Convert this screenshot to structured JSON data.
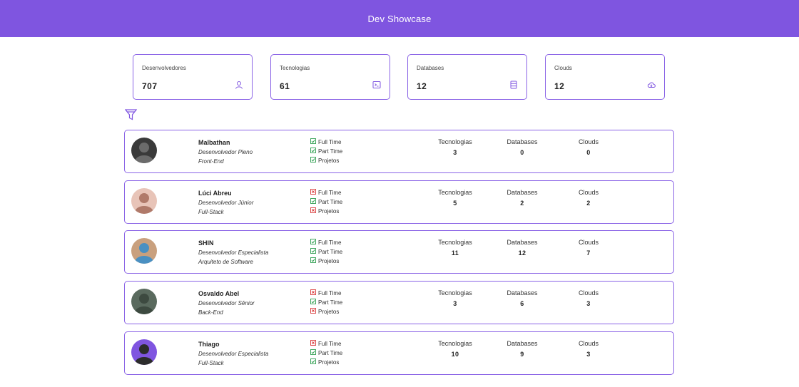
{
  "header": {
    "title": "Dev Showcase"
  },
  "stats": [
    {
      "label": "Desenvolvedores",
      "value": "707",
      "icon": "user-icon"
    },
    {
      "label": "Tecnologias",
      "value": "61",
      "icon": "terminal-icon"
    },
    {
      "label": "Databases",
      "value": "12",
      "icon": "database-icon"
    },
    {
      "label": "Clouds",
      "value": "12",
      "icon": "cloud-icon"
    }
  ],
  "filter": {
    "icon": "filter-icon"
  },
  "availability_labels": {
    "full_time": "Full Time",
    "part_time": "Part Time",
    "projects": "Projetos"
  },
  "metric_labels": {
    "technologies": "Tecnologias",
    "databases": "Databases",
    "clouds": "Clouds"
  },
  "colors": {
    "accent": "#7f55e0",
    "check": "#2e9e4f",
    "cross": "#d93a3a"
  },
  "developers": [
    {
      "name": "Malbathan",
      "role": "Desenvolvedor Pleno",
      "stack": "Front-End",
      "full_time": true,
      "part_time": true,
      "projects": true,
      "technologies": "3",
      "databases": "0",
      "clouds": "0"
    },
    {
      "name": "Lúci Abreu",
      "role": "Desenvolvedor Júnior",
      "stack": "Full-Stack",
      "full_time": false,
      "part_time": true,
      "projects": false,
      "technologies": "5",
      "databases": "2",
      "clouds": "2"
    },
    {
      "name": "SHIN",
      "role": "Desenvolvedor Especialista",
      "stack": "Arquiteto de Software",
      "full_time": true,
      "part_time": true,
      "projects": true,
      "technologies": "11",
      "databases": "12",
      "clouds": "7"
    },
    {
      "name": "Osvaldo Abel",
      "role": "Desenvolvedor Sênior",
      "stack": "Back-End",
      "full_time": false,
      "part_time": true,
      "projects": false,
      "technologies": "3",
      "databases": "6",
      "clouds": "3"
    },
    {
      "name": "Thiago",
      "role": "Desenvolvedor Especialista",
      "stack": "Full-Stack",
      "full_time": false,
      "part_time": true,
      "projects": true,
      "technologies": "10",
      "databases": "9",
      "clouds": "3"
    }
  ]
}
